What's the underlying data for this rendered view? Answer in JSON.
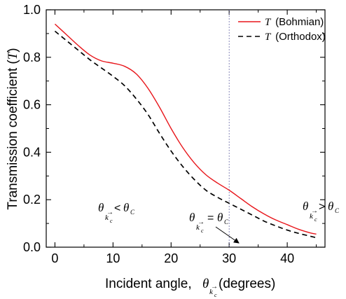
{
  "chart_data": {
    "type": "line",
    "xlim": [
      -1.5,
      46.5
    ],
    "ylim": [
      0.0,
      1.0
    ],
    "x_ticks": [
      0,
      10,
      20,
      30,
      40
    ],
    "y_ticks": [
      0.0,
      0.2,
      0.4,
      0.6,
      0.8,
      1.0
    ],
    "x_tick_labels": [
      "0",
      "10",
      "20",
      "30",
      "40"
    ],
    "y_tick_labels": [
      "0.0",
      "0.2",
      "0.4",
      "0.6",
      "0.8",
      "1.0"
    ],
    "xlabel": {
      "text": "Incident angle, ",
      "symbol": "θ",
      "sub": "k",
      "subsub": "c",
      "unit": " (degrees)"
    },
    "ylabel": {
      "text": "Transmission coefficient (",
      "symbol": "T",
      "close": ")"
    },
    "legend": {
      "placement": "top-right"
    },
    "critical_angle": 30,
    "series": [
      {
        "name": "(Bohmian)",
        "symbol": "T",
        "style": "solid",
        "color": "#e8161b",
        "x": [
          0,
          2,
          4,
          6,
          8,
          10,
          12,
          14,
          16,
          18,
          20,
          22,
          24,
          26,
          28,
          30,
          32,
          34,
          36,
          38,
          40,
          42,
          44,
          45
        ],
        "y": [
          0.94,
          0.895,
          0.85,
          0.81,
          0.785,
          0.775,
          0.762,
          0.73,
          0.67,
          0.59,
          0.5,
          0.42,
          0.355,
          0.305,
          0.27,
          0.24,
          0.205,
          0.17,
          0.14,
          0.115,
          0.095,
          0.075,
          0.06,
          0.055
        ]
      },
      {
        "name": "(Orthodox)",
        "symbol": "T",
        "style": "dashed",
        "color": "#000000",
        "x": [
          0,
          2,
          4,
          6,
          8,
          10,
          12,
          14,
          16,
          18,
          20,
          22,
          24,
          26,
          28,
          30,
          32,
          34,
          36,
          38,
          40,
          42,
          44,
          45
        ],
        "y": [
          0.91,
          0.87,
          0.83,
          0.79,
          0.755,
          0.72,
          0.68,
          0.625,
          0.56,
          0.48,
          0.405,
          0.34,
          0.285,
          0.24,
          0.21,
          0.185,
          0.16,
          0.135,
          0.11,
          0.09,
          0.072,
          0.058,
          0.046,
          0.04
        ]
      }
    ],
    "annotations": {
      "below": {
        "symbol": "θ",
        "sub": "k",
        "subsub": "c",
        "relation": "<",
        "rhs": "θ",
        "rhs_sub": "C"
      },
      "equal": {
        "symbol": "θ",
        "sub": "k",
        "subsub": "c",
        "relation": "=",
        "rhs": "θ",
        "rhs_sub": "C"
      },
      "above": {
        "symbol": "θ",
        "sub": "k",
        "subsub": "c",
        "relation": ">",
        "rhs": "θ",
        "rhs_sub": "C"
      }
    }
  }
}
